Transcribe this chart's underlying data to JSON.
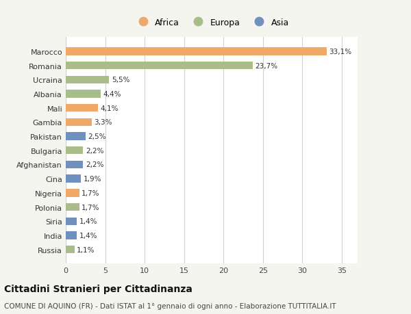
{
  "countries": [
    "Russia",
    "India",
    "Siria",
    "Polonia",
    "Nigeria",
    "Cina",
    "Afghanistan",
    "Bulgaria",
    "Pakistan",
    "Gambia",
    "Mali",
    "Albania",
    "Ucraina",
    "Romania",
    "Marocco"
  ],
  "values": [
    1.1,
    1.4,
    1.4,
    1.7,
    1.7,
    1.9,
    2.2,
    2.2,
    2.5,
    3.3,
    4.1,
    4.4,
    5.5,
    23.7,
    33.1
  ],
  "labels": [
    "1,1%",
    "1,4%",
    "1,4%",
    "1,7%",
    "1,7%",
    "1,9%",
    "2,2%",
    "2,2%",
    "2,5%",
    "3,3%",
    "4,1%",
    "4,4%",
    "5,5%",
    "23,7%",
    "33,1%"
  ],
  "continents": [
    "Europa",
    "Asia",
    "Asia",
    "Europa",
    "Africa",
    "Asia",
    "Asia",
    "Europa",
    "Asia",
    "Africa",
    "Africa",
    "Europa",
    "Europa",
    "Europa",
    "Africa"
  ],
  "colors": {
    "Africa": "#F0A868",
    "Europa": "#A8BC8C",
    "Asia": "#7090C0"
  },
  "title": "Cittadini Stranieri per Cittadinanza",
  "subtitle": "COMUNE DI AQUINO (FR) - Dati ISTAT al 1° gennaio di ogni anno - Elaborazione TUTTITALIA.IT",
  "xlim": [
    0,
    37
  ],
  "xticks": [
    0,
    5,
    10,
    15,
    20,
    25,
    30,
    35
  ],
  "background_color": "#f5f5f0",
  "bar_background": "#ffffff",
  "grid_color": "#d0d0d0",
  "title_fontsize": 10,
  "subtitle_fontsize": 7.5,
  "label_fontsize": 7.5,
  "tick_fontsize": 8,
  "legend_fontsize": 9
}
